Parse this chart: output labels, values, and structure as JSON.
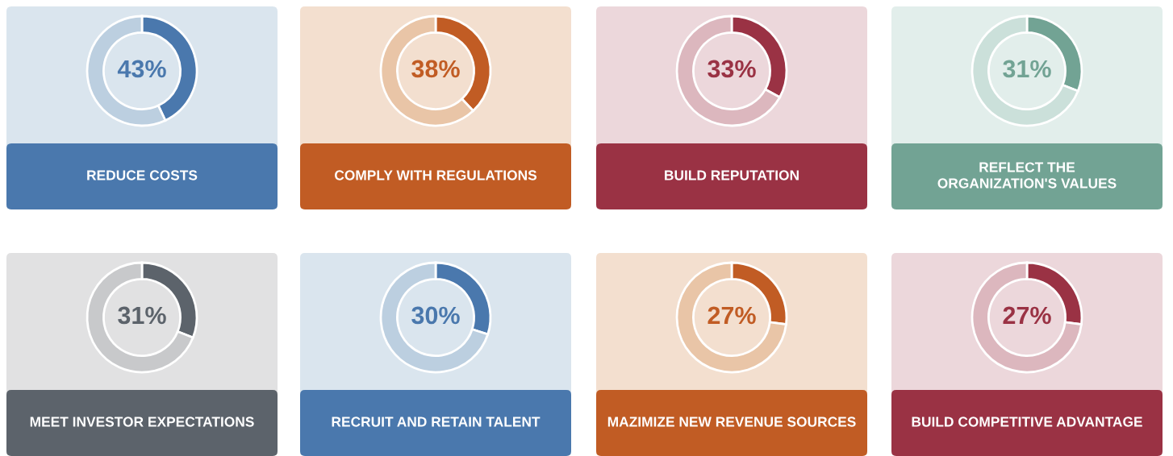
{
  "chart_data": [
    {
      "type": "donut",
      "title": "REDUCE COSTS",
      "categories": [
        null,
        null
      ],
      "values": [
        43,
        57
      ],
      "colors": [
        "#4a78ad",
        "#bccfe0"
      ],
      "value_labels": [
        "43%",
        null
      ]
    },
    {
      "type": "donut",
      "title": "COMPLY WITH REGULATIONS",
      "categories": [
        null,
        null
      ],
      "values": [
        38,
        62
      ],
      "colors": [
        "#c15c24",
        "#e9c5a7"
      ],
      "value_labels": [
        "38%",
        null
      ]
    },
    {
      "type": "donut",
      "title": "BUILD REPUTATION",
      "categories": [
        null,
        null
      ],
      "values": [
        33,
        67
      ],
      "colors": [
        "#9a3244",
        "#dcb7be"
      ],
      "value_labels": [
        "33%",
        null
      ]
    },
    {
      "type": "donut",
      "title": "REFLECT THE\nORGANIZATION'S VALUES",
      "categories": [
        null,
        null
      ],
      "values": [
        31,
        69
      ],
      "colors": [
        "#72a394",
        "#cbe0da"
      ],
      "value_labels": [
        "31%",
        null
      ]
    },
    {
      "type": "donut",
      "title": "MEET INVESTOR EXPECTATIONS",
      "categories": [
        null,
        null
      ],
      "values": [
        31,
        69
      ],
      "colors": [
        "#5c636b",
        "#c8c9cb"
      ],
      "value_labels": [
        "31%",
        null
      ]
    },
    {
      "type": "donut",
      "title": "RECRUIT AND RETAIN TALENT",
      "categories": [
        null,
        null
      ],
      "values": [
        30,
        70
      ],
      "colors": [
        "#4a78ad",
        "#bccfe0"
      ],
      "value_labels": [
        "30%",
        null
      ]
    },
    {
      "type": "donut",
      "title": "MAZIMIZE NEW REVENUE SOURCES",
      "categories": [
        null,
        null
      ],
      "values": [
        27,
        73
      ],
      "colors": [
        "#c15c24",
        "#e9c5a7"
      ],
      "value_labels": [
        "27%",
        null
      ]
    },
    {
      "type": "donut",
      "title": "BUILD COMPETITIVE ADVANTAGE",
      "categories": [
        null,
        null
      ],
      "values": [
        27,
        73
      ],
      "colors": [
        "#9a3244",
        "#dcb7be"
      ],
      "value_labels": [
        "27%",
        null
      ]
    }
  ]
}
